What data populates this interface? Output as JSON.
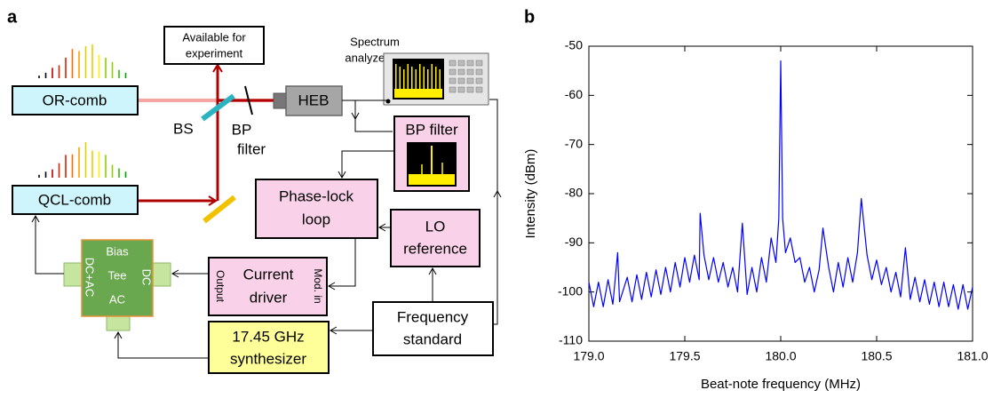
{
  "panel_labels": [
    "a",
    "b"
  ],
  "diagram": {
    "available": [
      "Available for",
      "experiment"
    ],
    "spectrum_analyzer": [
      "Spectrum",
      "analyzer"
    ],
    "or_comb": "OR-comb",
    "qcl_comb": "QCL-comb",
    "bs": "BS",
    "bp_filter_optic": [
      "BP",
      "filter"
    ],
    "heb": "HEB",
    "bp_filter": "BP filter",
    "phase_lock": [
      "Phase-lock",
      "loop"
    ],
    "lo_reference": [
      "LO",
      "reference"
    ],
    "bias_tee": {
      "bias": "Bias",
      "tee": "Tee",
      "dc_ac": "DC+AC",
      "dc": "DC",
      "ac": "AC"
    },
    "current_driver": {
      "label": [
        "Current",
        "driver"
      ],
      "output": "Output",
      "mod_in": "Mod. in"
    },
    "frequency_standard": [
      "Frequency",
      "standard"
    ],
    "synthesizer": [
      "17.45 GHz",
      "synthesizer"
    ]
  },
  "chart_data": {
    "type": "line",
    "x_label": "Beat-note frequency (MHz)",
    "y_label": "Intensity (dBm)",
    "color": "#0000ff",
    "x": [
      179,
      179.025,
      179.05,
      179.075,
      179.1,
      179.125,
      179.15,
      179.16,
      179.2,
      179.225,
      179.25,
      179.275,
      179.3,
      179.325,
      179.35,
      179.375,
      179.4,
      179.425,
      179.45,
      179.475,
      179.5,
      179.525,
      179.55,
      179.575,
      179.58,
      179.6,
      179.625,
      179.65,
      179.675,
      179.7,
      179.725,
      179.75,
      179.775,
      179.8,
      179.825,
      179.85,
      179.875,
      179.9,
      179.925,
      179.95,
      179.975,
      179.99,
      180,
      180.01,
      180.025,
      180.05,
      180.075,
      180.1,
      180.125,
      180.15,
      180.175,
      180.2,
      180.22,
      180.25,
      180.275,
      180.3,
      180.325,
      180.35,
      180.375,
      180.4,
      180.42,
      180.45,
      180.475,
      180.5,
      180.525,
      180.55,
      180.575,
      180.6,
      180.625,
      180.65,
      180.675,
      180.7,
      180.725,
      180.75,
      180.775,
      180.8,
      180.825,
      180.85,
      180.875,
      180.9,
      180.925,
      180.95,
      180.975,
      181
    ],
    "values": [
      -98,
      -103,
      -98,
      -103,
      -97.5,
      -102.5,
      -92,
      -102,
      -97,
      -102,
      -96.5,
      -101.5,
      -96,
      -101,
      -95.5,
      -100.5,
      -95,
      -100,
      -94,
      -99,
      -93,
      -98,
      -92.5,
      -97.5,
      -84,
      -92.5,
      -97.5,
      -93,
      -98,
      -94,
      -99,
      -95,
      -100,
      -86,
      -100.5,
      -95,
      -100,
      -93,
      -98,
      -89,
      -94,
      -85,
      -53,
      -85,
      -92,
      -89,
      -94,
      -93,
      -98,
      -95,
      -100,
      -95.5,
      -87,
      -95,
      -100,
      -94,
      -99,
      -93,
      -98,
      -92,
      -81,
      -92.5,
      -97.5,
      -93.5,
      -98.5,
      -95,
      -100,
      -96,
      -101,
      -91,
      -101.5,
      -97,
      -102,
      -97.5,
      -102.5,
      -98,
      -103,
      -98,
      -103,
      -98.5,
      -103.5,
      -98.5,
      -103.5,
      -99
    ],
    "xlim": [
      179,
      181
    ],
    "xticks": [
      {
        "value": 179,
        "label": "179.0"
      },
      179.5,
      {
        "value": 180,
        "label": "180.0"
      },
      180.5,
      {
        "value": 181,
        "label": "181.0"
      }
    ],
    "ylim": [
      -110,
      -50
    ],
    "yticks": [
      -110,
      -100,
      -90,
      -80,
      -70,
      -60,
      -50
    ]
  }
}
